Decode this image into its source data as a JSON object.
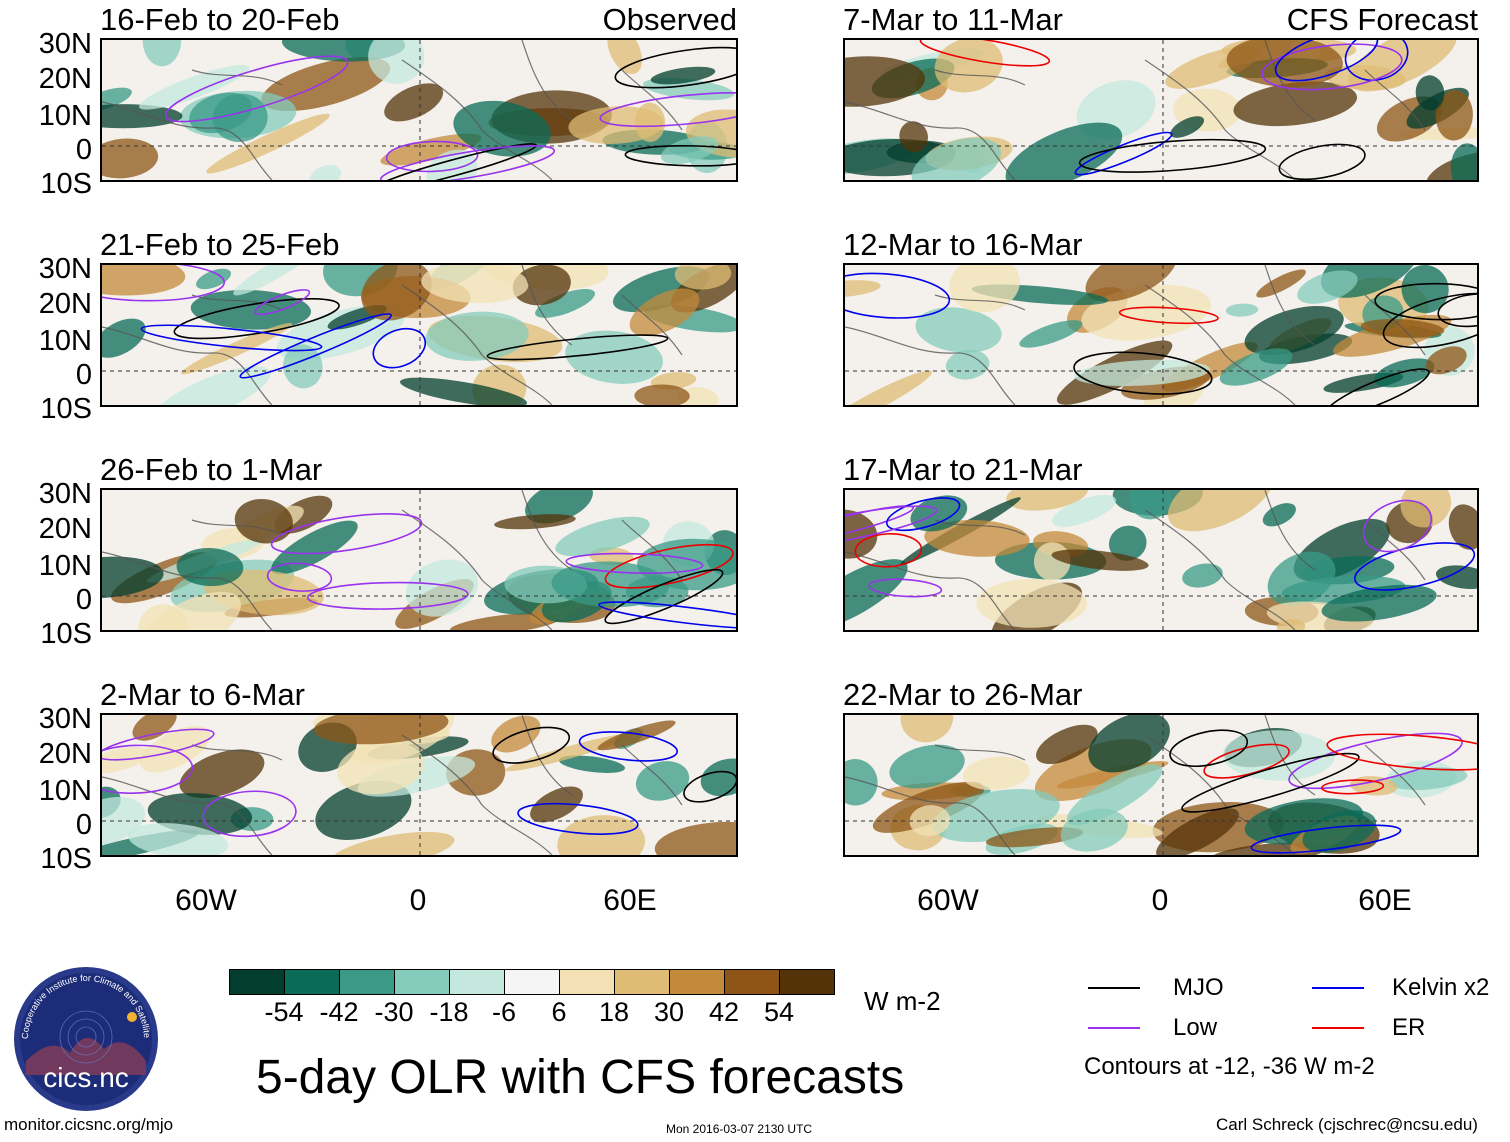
{
  "panels": [
    {
      "title": "16-Feb to 20-Feb",
      "tag": "Observed",
      "seed": 1
    },
    {
      "title": "7-Mar to 11-Mar",
      "tag": "CFS Forecast",
      "seed": 2
    },
    {
      "title": "21-Feb to 25-Feb",
      "tag": "",
      "seed": 3
    },
    {
      "title": "12-Mar to 16-Mar",
      "tag": "",
      "seed": 4
    },
    {
      "title": "26-Feb to 1-Mar",
      "tag": "",
      "seed": 5
    },
    {
      "title": "17-Mar to 21-Mar",
      "tag": "",
      "seed": 6
    },
    {
      "title": "2-Mar to 6-Mar",
      "tag": "",
      "seed": 7
    },
    {
      "title": "22-Mar to 26-Mar",
      "tag": "",
      "seed": 8
    }
  ],
  "lat_labels": [
    "30N",
    "20N",
    "10N",
    "0",
    "10S"
  ],
  "lon_labels": [
    "60W",
    "0",
    "60E"
  ],
  "colorbar": {
    "colors": [
      "#033d2e",
      "#0a6b57",
      "#3a9987",
      "#84cbbb",
      "#c4e8de",
      "#f5f5f5",
      "#f3e1b5",
      "#dfbc74",
      "#c48a3b",
      "#8e5516",
      "#543308"
    ],
    "labels": [
      "-54",
      "-42",
      "-30",
      "-18",
      "-6",
      "6",
      "18",
      "30",
      "42",
      "54"
    ],
    "units": "W m-2"
  },
  "legend": {
    "items": [
      {
        "label": "MJO",
        "color": "#000000"
      },
      {
        "label": "Kelvin x2",
        "color": "#0000ee"
      },
      {
        "label": "Low",
        "color": "#9933ee"
      },
      {
        "label": "ER",
        "color": "#ee0000"
      }
    ],
    "note": "Contours at -12, -36 W m-2"
  },
  "logo": {
    "text": "cics.nc",
    "ring_text": "Cooperative Institute for Climate and Satellites"
  },
  "title": "5-day OLR with CFS forecasts",
  "footer": {
    "left": "monitor.cicsnc.org/mjo",
    "center": "Mon 2016-03-07 2130 UTC",
    "right": "Carl Schreck (cjschrec@ncsu.edu)"
  }
}
